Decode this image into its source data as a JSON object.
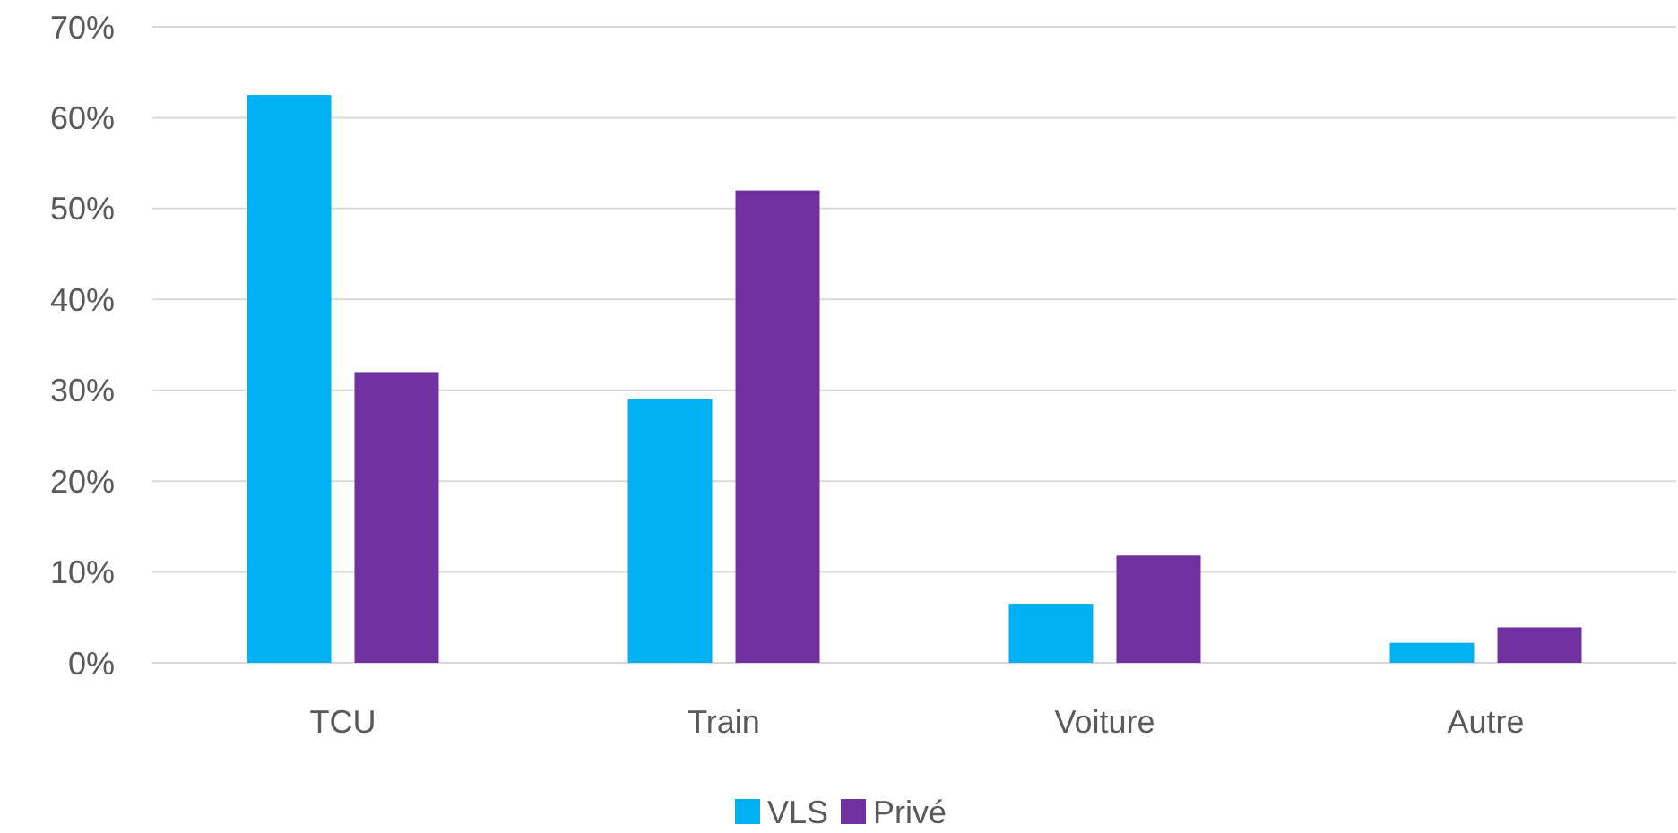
{
  "chart_data": {
    "type": "bar",
    "categories": [
      "TCU",
      "Train",
      "Voiture",
      "Autre"
    ],
    "series": [
      {
        "name": "VLS",
        "color": "#00b0f0",
        "values": [
          62.5,
          29,
          6.5,
          2.2
        ]
      },
      {
        "name": "Privé",
        "color": "#7030a0",
        "values": [
          32,
          52,
          11.8,
          3.9
        ]
      }
    ],
    "ylim": [
      0,
      70
    ],
    "yticks": [
      {
        "value": 0,
        "label": "0%"
      },
      {
        "value": 10,
        "label": "10%"
      },
      {
        "value": 20,
        "label": "20%"
      },
      {
        "value": 30,
        "label": "30%"
      },
      {
        "value": 40,
        "label": "40%"
      },
      {
        "value": 50,
        "label": "50%"
      },
      {
        "value": 60,
        "label": "60%"
      },
      {
        "value": 70,
        "label": "70%"
      }
    ],
    "grid": "y",
    "legend": "bottom"
  }
}
